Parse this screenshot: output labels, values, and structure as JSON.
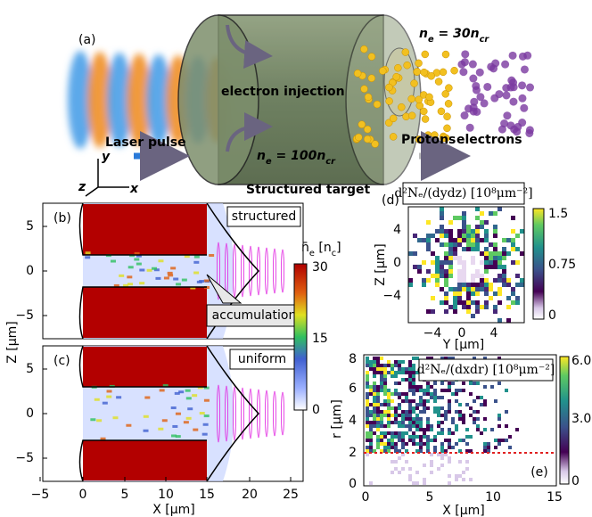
{
  "panel_a": {
    "label": "(a)",
    "density_rear": [
      "n",
      "e",
      " = 30n",
      "cr"
    ],
    "injection": "electron injection",
    "laser": "Laser pulse",
    "density_bulk": [
      "n",
      "e",
      " = 100n",
      "cr"
    ],
    "protons": "Protons",
    "electrons": "electrons",
    "target": "Structured target",
    "axes": [
      "y",
      "z",
      "x"
    ]
  },
  "panel_b": {
    "label": "(b)",
    "tag": "structured",
    "annotation": "accumulation",
    "yticks": [
      "5",
      "0",
      "−5"
    ]
  },
  "panel_c": {
    "label": "(c)",
    "tag": "uniform",
    "yticks": [
      "5",
      "0",
      "−5"
    ],
    "xticks": [
      "−5",
      "0",
      "5",
      "10",
      "15",
      "20",
      "25"
    ],
    "ylabel": "Z [μm]",
    "xlabel": "X [μm]"
  },
  "colorbar_bc": {
    "title": [
      "n̄",
      "e",
      " [n",
      "c",
      "]"
    ],
    "ticks": [
      "30",
      "15",
      "0"
    ]
  },
  "panel_d": {
    "label": "(d)",
    "title": "d²Nₑ/(dydz) [10⁸μm⁻²]",
    "yticks": [
      "4",
      "0",
      "−4"
    ],
    "xticks": [
      "−4",
      "0",
      "4"
    ],
    "ylabel": "Z [μm]",
    "xlabel": "Y [μm]",
    "cbticks": [
      "1.5",
      "0.75",
      "0"
    ]
  },
  "panel_e": {
    "label": "(e)",
    "title": "d²Nₑ/(dxdr) [10⁸μm⁻²]",
    "yticks": [
      "8",
      "6",
      "4",
      "2",
      "0"
    ],
    "xticks": [
      "0",
      "5",
      "10",
      "15"
    ],
    "ylabel": "r [μm]",
    "xlabel": "X [μm]",
    "cbticks": [
      "6.0",
      "3.0",
      "0"
    ]
  }
}
